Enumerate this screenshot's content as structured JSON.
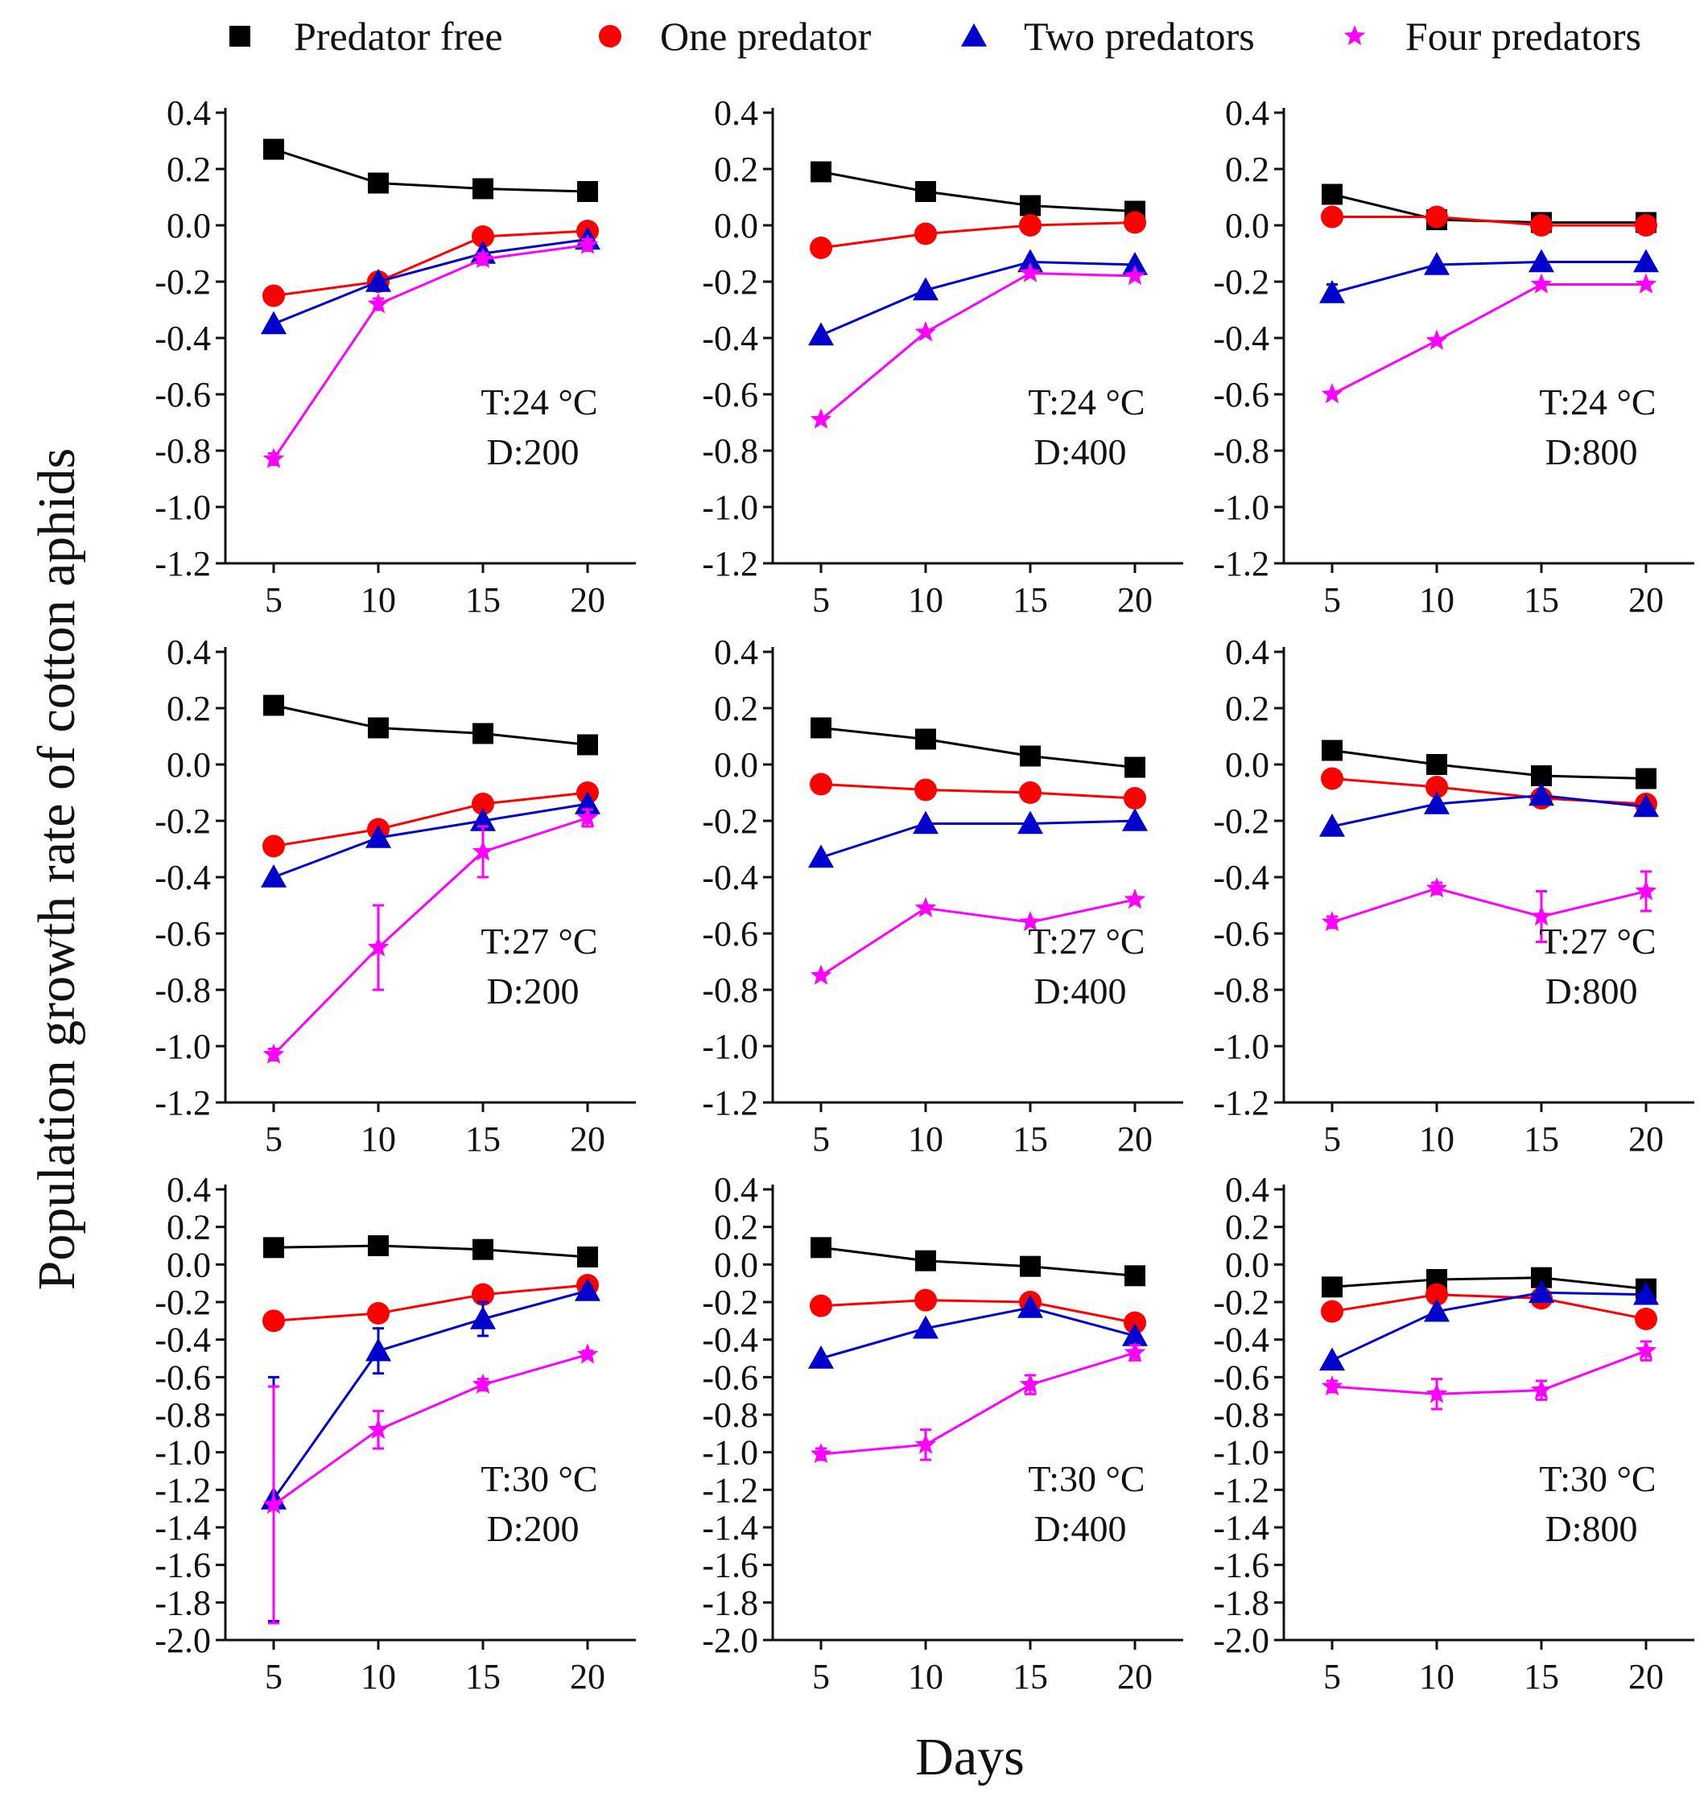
{
  "chart_data": {
    "type": "line",
    "xlabel": "Days",
    "ylabel": "Population growth rate of cotton aphids",
    "x": [
      5,
      10,
      15,
      20
    ],
    "legend": [
      {
        "name": "Predator free",
        "color": "#000000",
        "marker": "square"
      },
      {
        "name": "One predator",
        "color": "#ff0000",
        "marker": "circle"
      },
      {
        "name": "Two predators",
        "color": "#0000cc",
        "marker": "triangle"
      },
      {
        "name": "Four predators",
        "color": "#ff00ff",
        "marker": "star"
      }
    ],
    "panels": [
      {
        "temp": "T:24 °C",
        "density": "D:200",
        "ylim": [
          -1.2,
          0.4
        ],
        "yticks": [
          "0.4",
          "0.2",
          "0.0",
          "-0.2",
          "-0.4",
          "-0.6",
          "-0.8",
          "-1.0",
          "-1.2"
        ],
        "series": [
          {
            "name": "Predator free",
            "values": [
              0.27,
              0.15,
              0.13,
              0.12
            ]
          },
          {
            "name": "One predator",
            "values": [
              -0.25,
              -0.2,
              -0.04,
              -0.02
            ]
          },
          {
            "name": "Two predators",
            "values": [
              -0.35,
              -0.2,
              -0.1,
              -0.05
            ]
          },
          {
            "name": "Four predators",
            "values": [
              -0.83,
              -0.28,
              -0.12,
              -0.07
            ],
            "errors": [
              0.02,
              0.02,
              0.02,
              0.02
            ]
          }
        ]
      },
      {
        "temp": "T:24 °C",
        "density": "D:400",
        "ylim": [
          -1.2,
          0.4
        ],
        "yticks": [
          "0.4",
          "0.2",
          "0.0",
          "-0.2",
          "-0.4",
          "-0.6",
          "-0.8",
          "-1.0",
          "-1.2"
        ],
        "series": [
          {
            "name": "Predator free",
            "values": [
              0.19,
              0.12,
              0.07,
              0.05
            ]
          },
          {
            "name": "One predator",
            "values": [
              -0.08,
              -0.03,
              0.0,
              0.01
            ]
          },
          {
            "name": "Two predators",
            "values": [
              -0.39,
              -0.23,
              -0.13,
              -0.14
            ]
          },
          {
            "name": "Four predators",
            "values": [
              -0.69,
              -0.38,
              -0.17,
              -0.18
            ]
          }
        ]
      },
      {
        "temp": "T:24 °C",
        "density": "D:800",
        "ylim": [
          -1.2,
          0.4
        ],
        "yticks": [
          "0.4",
          "0.2",
          "0.0",
          "-0.2",
          "-0.4",
          "-0.6",
          "-0.8",
          "-1.0",
          "-1.2"
        ],
        "series": [
          {
            "name": "Predator free",
            "values": [
              0.11,
              0.02,
              0.01,
              0.01
            ]
          },
          {
            "name": "One predator",
            "values": [
              0.03,
              0.03,
              0.0,
              0.0
            ]
          },
          {
            "name": "Two predators",
            "values": [
              -0.24,
              -0.14,
              -0.13,
              -0.13
            ],
            "errors": [
              0.03,
              0.0,
              0.0,
              0.0
            ]
          },
          {
            "name": "Four predators",
            "values": [
              -0.6,
              -0.41,
              -0.21,
              -0.21
            ]
          }
        ]
      },
      {
        "temp": "T:27 °C",
        "density": "D:200",
        "ylim": [
          -1.2,
          0.4
        ],
        "yticks": [
          "0.4",
          "0.2",
          "0.0",
          "-0.2",
          "-0.4",
          "-0.6",
          "-0.8",
          "-1.0",
          "-1.2"
        ],
        "series": [
          {
            "name": "Predator free",
            "values": [
              0.21,
              0.13,
              0.11,
              0.07
            ]
          },
          {
            "name": "One predator",
            "values": [
              -0.29,
              -0.23,
              -0.14,
              -0.1
            ]
          },
          {
            "name": "Two predators",
            "values": [
              -0.4,
              -0.26,
              -0.2,
              -0.14
            ]
          },
          {
            "name": "Four predators",
            "values": [
              -1.03,
              -0.65,
              -0.31,
              -0.19
            ],
            "errors": [
              0.02,
              0.15,
              0.09,
              0.03
            ]
          }
        ]
      },
      {
        "temp": "T:27 °C",
        "density": "D:400",
        "ylim": [
          -1.2,
          0.4
        ],
        "yticks": [
          "0.4",
          "0.2",
          "0.0",
          "-0.2",
          "-0.4",
          "-0.6",
          "-0.8",
          "-1.0",
          "-1.2"
        ],
        "series": [
          {
            "name": "Predator free",
            "values": [
              0.13,
              0.09,
              0.03,
              -0.01
            ]
          },
          {
            "name": "One predator",
            "values": [
              -0.07,
              -0.09,
              -0.1,
              -0.12
            ]
          },
          {
            "name": "Two predators",
            "values": [
              -0.33,
              -0.21,
              -0.21,
              -0.2
            ]
          },
          {
            "name": "Four predators",
            "values": [
              -0.75,
              -0.51,
              -0.56,
              -0.48
            ]
          }
        ]
      },
      {
        "temp": "T:27 °C",
        "density": "D:800",
        "ylim": [
          -1.2,
          0.4
        ],
        "yticks": [
          "0.4",
          "0.2",
          "0.0",
          "-0.2",
          "-0.4",
          "-0.6",
          "-0.8",
          "-1.0",
          "-1.2"
        ],
        "series": [
          {
            "name": "Predator free",
            "values": [
              0.05,
              0.0,
              -0.04,
              -0.05
            ]
          },
          {
            "name": "One predator",
            "values": [
              -0.05,
              -0.08,
              -0.12,
              -0.14
            ]
          },
          {
            "name": "Two predators",
            "values": [
              -0.22,
              -0.14,
              -0.11,
              -0.15
            ]
          },
          {
            "name": "Four predators",
            "values": [
              -0.56,
              -0.44,
              -0.54,
              -0.45
            ],
            "errors": [
              0.02,
              0.02,
              0.09,
              0.07
            ]
          }
        ]
      },
      {
        "temp": "T:30 °C",
        "density": "D:200",
        "ylim": [
          -2.0,
          0.4
        ],
        "yticks": [
          "0.4",
          "0.2",
          "0.0",
          "-0.2",
          "-0.4",
          "-0.6",
          "-0.8",
          "-1.0",
          "-1.2",
          "-1.4",
          "-1.6",
          "-1.8",
          "-2.0"
        ],
        "series": [
          {
            "name": "Predator free",
            "values": [
              0.09,
              0.1,
              0.08,
              0.04
            ]
          },
          {
            "name": "One predator",
            "values": [
              -0.3,
              -0.26,
              -0.16,
              -0.11
            ]
          },
          {
            "name": "Two predators",
            "values": [
              -1.25,
              -0.46,
              -0.29,
              -0.14
            ],
            "errors": [
              0.65,
              0.12,
              0.09,
              0.02
            ]
          },
          {
            "name": "Four predators",
            "values": [
              -1.28,
              -0.88,
              -0.64,
              -0.48
            ],
            "errors": [
              0.63,
              0.1,
              0.03,
              0.02
            ]
          }
        ]
      },
      {
        "temp": "T:30 °C",
        "density": "D:400",
        "ylim": [
          -2.0,
          0.4
        ],
        "yticks": [
          "0.4",
          "0.2",
          "0.0",
          "-0.2",
          "-0.4",
          "-0.6",
          "-0.8",
          "-1.0",
          "-1.2",
          "-1.4",
          "-1.6",
          "-1.8",
          "-2.0"
        ],
        "series": [
          {
            "name": "Predator free",
            "values": [
              0.09,
              0.02,
              -0.01,
              -0.06
            ]
          },
          {
            "name": "One predator",
            "values": [
              -0.22,
              -0.19,
              -0.2,
              -0.31
            ]
          },
          {
            "name": "Two predators",
            "values": [
              -0.5,
              -0.34,
              -0.23,
              -0.38
            ]
          },
          {
            "name": "Four predators",
            "values": [
              -1.01,
              -0.96,
              -0.64,
              -0.47
            ],
            "errors": [
              0.03,
              0.08,
              0.05,
              0.04
            ]
          }
        ]
      },
      {
        "temp": "T:30 °C",
        "density": "D:800",
        "ylim": [
          -2.0,
          0.4
        ],
        "yticks": [
          "0.4",
          "0.2",
          "0.0",
          "-0.2",
          "-0.4",
          "-0.6",
          "-0.8",
          "-1.0",
          "-1.2",
          "-1.4",
          "-1.6",
          "-1.8",
          "-2.0"
        ],
        "series": [
          {
            "name": "Predator free",
            "values": [
              -0.12,
              -0.08,
              -0.07,
              -0.13
            ]
          },
          {
            "name": "One predator",
            "values": [
              -0.25,
              -0.16,
              -0.18,
              -0.29
            ]
          },
          {
            "name": "Two predators",
            "values": [
              -0.51,
              -0.25,
              -0.15,
              -0.16
            ]
          },
          {
            "name": "Four predators",
            "values": [
              -0.65,
              -0.69,
              -0.67,
              -0.46
            ],
            "errors": [
              0.03,
              0.08,
              0.05,
              0.05
            ]
          }
        ]
      }
    ]
  }
}
